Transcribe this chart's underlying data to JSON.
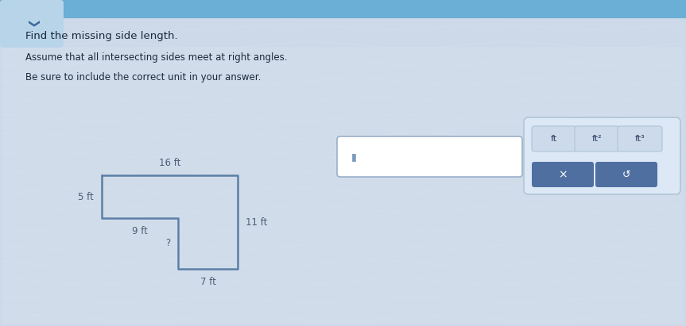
{
  "title1": "Find the missing side length.",
  "title2": "Assume that all intersecting sides meet at right angles.",
  "title3": "Be sure to include the correct unit in your answer.",
  "bg_color": "#cdd9e8",
  "wave_color": "#d8e5f0",
  "shape_color": "#5b7fa6",
  "shape_linewidth": 1.8,
  "labels": {
    "top": "16 ft",
    "left": "5 ft",
    "bottom_left": "9 ft",
    "right": "11 ft",
    "unknown": "?",
    "bottom_inner": "7 ft"
  },
  "label_color": "#4a5e78",
  "label_fontsize": 8.5,
  "unit_buttons": [
    "ft",
    "ft²",
    "ft³"
  ],
  "action_buttons": [
    "×",
    "↺"
  ],
  "button_bg": "#4f6fa0",
  "button_text_color": "#ffffff",
  "panel_bg": "#dce8f5",
  "panel_border": "#b0c4d8",
  "unit_btn_bg": "#ccdaec",
  "unit_btn_border": "#b0c4d8",
  "input_box_bg": "#edf2f8",
  "input_box_border": "#9ab0c8",
  "chevron_bg": "#7aacce",
  "chevron_bg2": "#a8c8e0",
  "text_color": "#1a2a3a",
  "shape_ox": 1.28,
  "shape_oy": 0.72,
  "shape_sc": 0.107
}
